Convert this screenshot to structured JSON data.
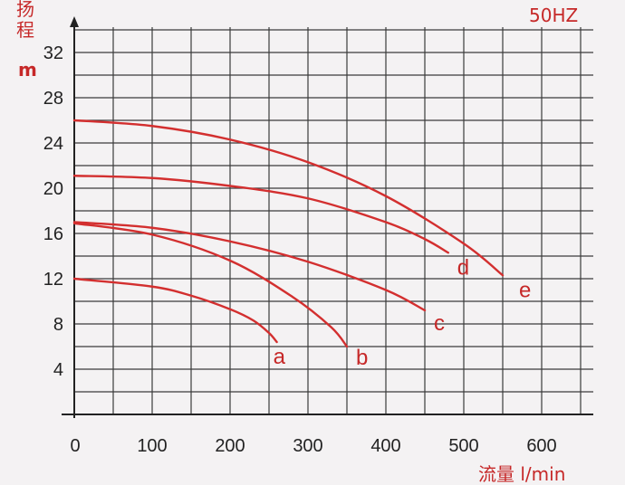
{
  "chart_data": {
    "type": "line",
    "title": "50HZ",
    "ylabel_cn": "扬程",
    "ylabel_unit": "m",
    "xlabel": "流量 l/min",
    "xlim": [
      0,
      660
    ],
    "ylim": [
      0,
      34
    ],
    "x_ticks": [
      0,
      100,
      200,
      300,
      400,
      500,
      600
    ],
    "y_ticks": [
      4,
      8,
      12,
      16,
      20,
      24,
      28,
      32
    ],
    "grid": true,
    "line_color": "#d32f2f",
    "series": [
      {
        "name": "a",
        "points": [
          [
            0,
            12.0
          ],
          [
            100,
            11.3
          ],
          [
            150,
            10.5
          ],
          [
            200,
            9.3
          ],
          [
            230,
            8.3
          ],
          [
            250,
            7.2
          ],
          [
            260,
            6.4
          ]
        ]
      },
      {
        "name": "b",
        "points": [
          [
            0,
            16.9
          ],
          [
            100,
            15.9
          ],
          [
            200,
            13.6
          ],
          [
            280,
            10.4
          ],
          [
            330,
            7.7
          ],
          [
            350,
            6.0
          ]
        ]
      },
      {
        "name": "c",
        "points": [
          [
            0,
            17.0
          ],
          [
            100,
            16.5
          ],
          [
            200,
            15.3
          ],
          [
            300,
            13.5
          ],
          [
            400,
            11.0
          ],
          [
            450,
            9.2
          ]
        ]
      },
      {
        "name": "d",
        "points": [
          [
            0,
            21.1
          ],
          [
            100,
            20.9
          ],
          [
            200,
            20.2
          ],
          [
            300,
            19.1
          ],
          [
            400,
            17.0
          ],
          [
            450,
            15.5
          ],
          [
            480,
            14.3
          ]
        ]
      },
      {
        "name": "e",
        "points": [
          [
            0,
            26.0
          ],
          [
            100,
            25.5
          ],
          [
            200,
            24.3
          ],
          [
            300,
            22.3
          ],
          [
            400,
            19.3
          ],
          [
            500,
            15.1
          ],
          [
            550,
            12.3
          ]
        ]
      }
    ]
  }
}
